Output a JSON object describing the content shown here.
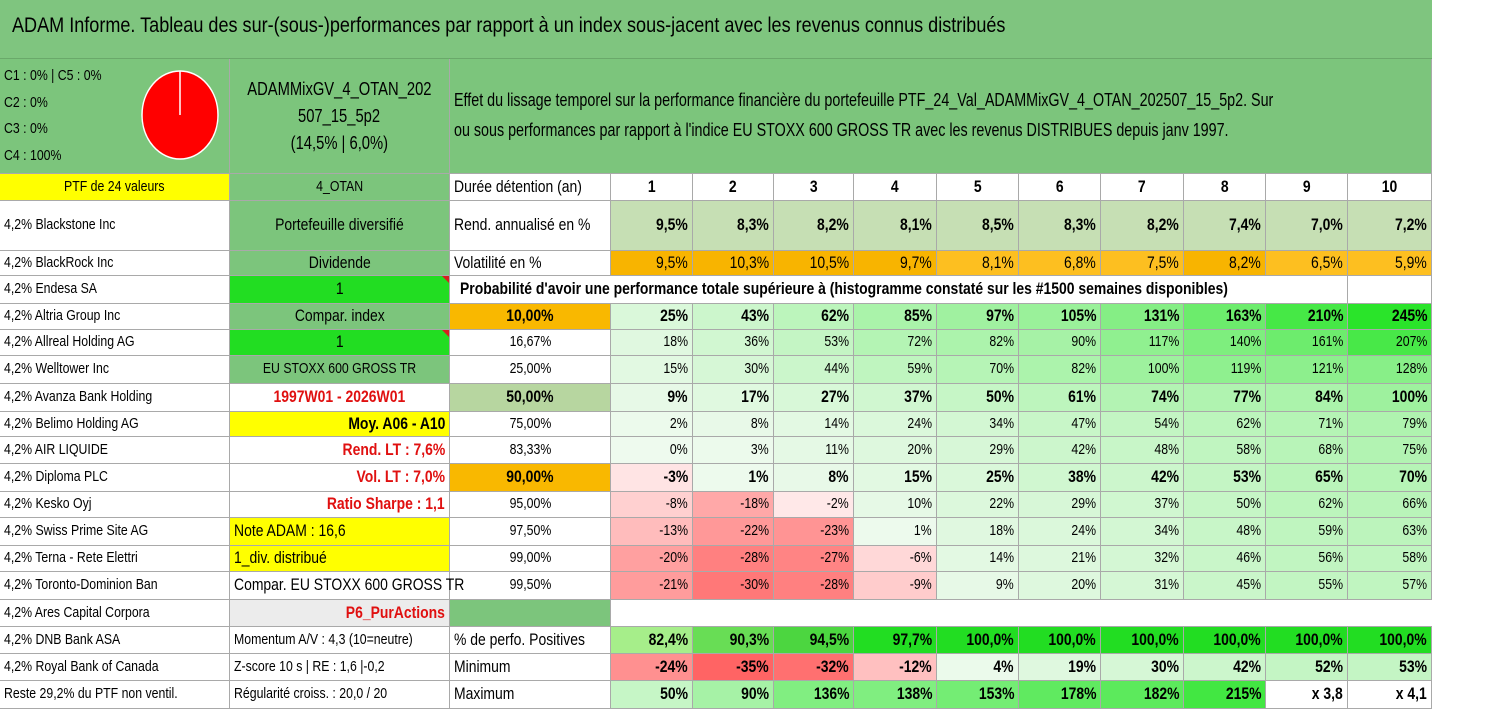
{
  "header_title": "ADAM Informe. Tableau des sur-(sous-)performances par rapport à un index sous-jacent avec les revenus connus distribués",
  "legend": {
    "c1c5": "C1 : 0% | C5 : 0%",
    "c2": "C2 : 0%",
    "c3": "C3 : 0%",
    "c4": "C4 : 100%"
  },
  "pie": {
    "color": "#ff0000",
    "c4_share": 100
  },
  "portfolio": {
    "line1": "ADAMMixGV_4_OTAN_202",
    "line2": "507_15_5p2",
    "line3": "(14,5% | 6,0%)"
  },
  "description_line1": "Effet du lissage temporel sur la performance financière du portefeuille PTF_24_Val_ADAMMixGV_4_OTAN_202507_15_5p2. Sur",
  "description_line2": "ou sous performances par rapport à l'indice EU STOXX 600 GROSS TR avec les revenus DISTRIBUES depuis janv 1997.",
  "ptf_label": "PTF de 24 valeurs",
  "holdings": [
    "4,2% Blackstone Inc",
    "4,2% BlackRock Inc",
    "4,2% Endesa SA",
    "4,2% Altria Group Inc",
    "4,2% Allreal Holding AG",
    "4,2% Welltower Inc",
    "4,2% Avanza Bank Holding",
    "4,2% Belimo Holding AG",
    "4,2% AIR LIQUIDE",
    "4,2% Diploma PLC",
    "4,2% Kesko Oyj",
    "4,2% Swiss Prime Site AG",
    "4,2% Terna - Rete Elettri",
    "4,2% Toronto-Dominion Ban",
    "4,2% Ares Capital Corpora",
    "4,2% DNB Bank ASA",
    "4,2% Royal Bank of Canada",
    "Reste 29,2% du PTF non ventil."
  ],
  "info": [
    "4_OTAN",
    "Portefeuille diversifié",
    "Dividende",
    "1",
    "Compar. index",
    "1",
    "EU STOXX 600 GROSS TR",
    "1997W01 - 2026W01",
    "Moy. A06 - A10",
    "Rend. LT : 7,6%",
    "Vol. LT : 7,0%",
    "Ratio Sharpe : 1,1",
    "Note ADAM : 16,6",
    "1_div. distribué",
    "Compar. EU STOXX 600 GROSS TR",
    "P6_PurActions",
    "Momentum A/V : 4,3 (10=neutre)",
    "Z-score 10 s | RE : 1,6 |-0,2",
    "Régularité croiss. : 20,0 / 20"
  ],
  "durations_label": "Durée détention (an)",
  "durations": [
    "1",
    "2",
    "3",
    "4",
    "5",
    "6",
    "7",
    "8",
    "9",
    "10"
  ],
  "rend_label": "Rend. annualisé en %",
  "rend": [
    "9,5%",
    "8,3%",
    "8,2%",
    "8,1%",
    "8,5%",
    "8,3%",
    "8,2%",
    "7,4%",
    "7,0%",
    "7,2%"
  ],
  "vol_label": "Volatilité en %",
  "vol": [
    "9,5%",
    "10,3%",
    "10,5%",
    "9,7%",
    "8,1%",
    "6,8%",
    "7,5%",
    "8,2%",
    "6,5%",
    "5,9%"
  ],
  "prob_label": "Probabilité d'avoir une performance totale supérieure à (histogramme constaté sur les #1500 semaines disponibles)",
  "probabilities": [
    "10,00%",
    "16,67%",
    "25,00%",
    "50,00%",
    "75,00%",
    "83,33%",
    "90,00%",
    "95,00%",
    "97,50%",
    "99,00%",
    "99,50%"
  ],
  "perf_matrix": [
    [
      "25%",
      "43%",
      "62%",
      "85%",
      "97%",
      "105%",
      "131%",
      "163%",
      "210%",
      "245%"
    ],
    [
      "18%",
      "36%",
      "53%",
      "72%",
      "82%",
      "90%",
      "117%",
      "140%",
      "161%",
      "207%"
    ],
    [
      "15%",
      "30%",
      "44%",
      "59%",
      "70%",
      "82%",
      "100%",
      "119%",
      "121%",
      "128%"
    ],
    [
      "9%",
      "17%",
      "27%",
      "37%",
      "50%",
      "61%",
      "74%",
      "77%",
      "84%",
      "100%"
    ],
    [
      "2%",
      "8%",
      "14%",
      "24%",
      "34%",
      "47%",
      "54%",
      "62%",
      "71%",
      "79%"
    ],
    [
      "0%",
      "3%",
      "11%",
      "20%",
      "29%",
      "42%",
      "48%",
      "58%",
      "68%",
      "75%"
    ],
    [
      "-3%",
      "1%",
      "8%",
      "15%",
      "25%",
      "38%",
      "42%",
      "53%",
      "65%",
      "70%"
    ],
    [
      "-8%",
      "-18%",
      "-2%",
      "10%",
      "22%",
      "29%",
      "37%",
      "50%",
      "62%",
      "66%"
    ],
    [
      "-13%",
      "-22%",
      "-23%",
      "1%",
      "18%",
      "24%",
      "34%",
      "48%",
      "59%",
      "63%"
    ],
    [
      "-20%",
      "-28%",
      "-27%",
      "-6%",
      "14%",
      "21%",
      "32%",
      "46%",
      "56%",
      "58%"
    ],
    [
      "-21%",
      "-30%",
      "-28%",
      "-9%",
      "9%",
      "20%",
      "31%",
      "45%",
      "55%",
      "57%"
    ]
  ],
  "pos_label": "% de perfo. Positives",
  "pos": [
    "82,4%",
    "90,3%",
    "94,5%",
    "97,7%",
    "100,0%",
    "100,0%",
    "100,0%",
    "100,0%",
    "100,0%",
    "100,0%"
  ],
  "min_label": "Minimum",
  "min": [
    "-24%",
    "-35%",
    "-32%",
    "-12%",
    "4%",
    "19%",
    "30%",
    "42%",
    "52%",
    "53%"
  ],
  "max_label": "Maximum",
  "max": [
    "50%",
    "90%",
    "136%",
    "138%",
    "153%",
    "178%",
    "182%",
    "215%",
    "x 3,8",
    "x 4,1"
  ]
}
